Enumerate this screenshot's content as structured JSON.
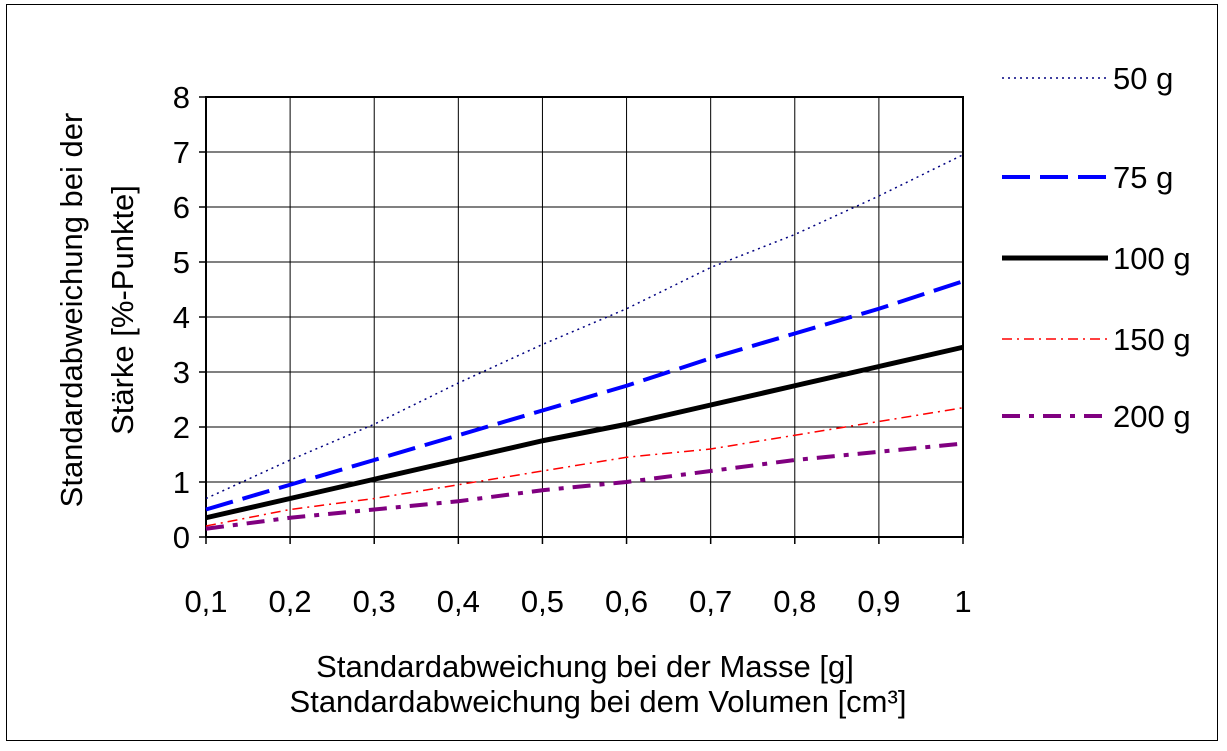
{
  "chart_data": {
    "type": "line",
    "x": [
      0.1,
      0.2,
      0.3,
      0.4,
      0.5,
      0.6,
      0.7,
      0.8,
      0.9,
      1.0
    ],
    "x_tick_labels": [
      "0,1",
      "0,2",
      "0,3",
      "0,4",
      "0,5",
      "0,6",
      "0,7",
      "0,8",
      "0,9",
      "1"
    ],
    "y_ticks": [
      0,
      1,
      2,
      3,
      4,
      5,
      6,
      7,
      8
    ],
    "xlim": [
      0.1,
      1.0
    ],
    "ylim": [
      0,
      8
    ],
    "grid": true,
    "legend_position": "right",
    "title": "",
    "ylabel_line1": "Standardabweichung bei der",
    "ylabel_line2": "Stärke [%-Punkte]",
    "xlabel_line1": "Standardabweichung bei der Masse [g]",
    "xlabel_line2": "Standardabweichung bei dem Volumen [cm³]",
    "series": [
      {
        "name": "50 g",
        "color": "#000080",
        "style": "dotted",
        "values": [
          0.7,
          1.4,
          2.05,
          2.8,
          3.5,
          4.15,
          4.9,
          5.5,
          6.2,
          6.95
        ]
      },
      {
        "name": "75 g",
        "color": "#0000ff",
        "style": "dashed",
        "values": [
          0.5,
          0.95,
          1.4,
          1.85,
          2.3,
          2.75,
          3.25,
          3.7,
          4.15,
          4.65
        ]
      },
      {
        "name": "100 g",
        "color": "#000000",
        "style": "solid",
        "values": [
          0.35,
          0.7,
          1.05,
          1.4,
          1.75,
          2.05,
          2.4,
          2.75,
          3.1,
          3.45
        ]
      },
      {
        "name": "150 g",
        "color": "#ff0000",
        "style": "dashdot",
        "values": [
          0.2,
          0.5,
          0.7,
          0.95,
          1.2,
          1.45,
          1.6,
          1.85,
          2.1,
          2.35
        ]
      },
      {
        "name": "200 g",
        "color": "#800080",
        "style": "dashdot2",
        "values": [
          0.15,
          0.35,
          0.5,
          0.65,
          0.85,
          1.0,
          1.2,
          1.4,
          1.55,
          1.7
        ]
      }
    ]
  }
}
